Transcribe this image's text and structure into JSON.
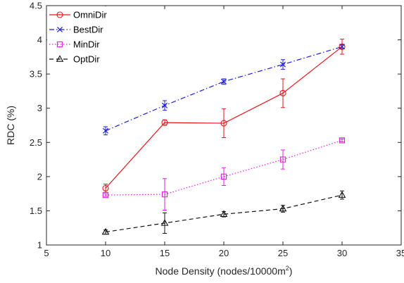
{
  "chart_data": {
    "type": "line",
    "xlabel": "Node Density (nodes/10000m",
    "xlabel_superscript": "2",
    "xlabel_suffix": ")",
    "ylabel": "RDC (%)",
    "xlim": [
      5,
      35
    ],
    "ylim": [
      1,
      4.5
    ],
    "xticks": [
      5,
      10,
      15,
      20,
      25,
      30,
      35
    ],
    "yticks": [
      1,
      1.5,
      2,
      2.5,
      3,
      3.5,
      4,
      4.5
    ],
    "xtick_labels": [
      "5",
      "10",
      "15",
      "20",
      "25",
      "30",
      "35"
    ],
    "ytick_labels": [
      "1",
      "1.5",
      "2",
      "2.5",
      "3",
      "3.5",
      "4",
      "4.5"
    ],
    "grid": false,
    "legend_position": "top-left",
    "x": [
      10,
      15,
      20,
      25,
      30
    ],
    "series": [
      {
        "name": "OmniDir",
        "color": "#e8161b",
        "line_style": "solid",
        "marker": "circle",
        "values": [
          1.83,
          2.79,
          2.78,
          3.22,
          3.9
        ],
        "error": [
          0.06,
          0.04,
          0.21,
          0.21,
          0.11
        ]
      },
      {
        "name": "BestDir",
        "color": "#1f1fd6",
        "line_style": "dashdot",
        "marker": "x",
        "values": [
          2.67,
          3.04,
          3.39,
          3.64,
          3.9
        ],
        "error": [
          0.06,
          0.07,
          0.04,
          0.07,
          0.03
        ]
      },
      {
        "name": "MinDir",
        "color": "#e21fe2",
        "line_style": "dotted",
        "marker": "square",
        "values": [
          1.73,
          1.74,
          2.0,
          2.25,
          2.53
        ],
        "error": [
          0.02,
          0.23,
          0.13,
          0.14,
          0.02
        ]
      },
      {
        "name": "OptDir",
        "color": "#111111",
        "line_style": "dashed",
        "marker": "triangle",
        "values": [
          1.19,
          1.32,
          1.45,
          1.53,
          1.73
        ],
        "error": [
          0.03,
          0.15,
          0.04,
          0.05,
          0.06
        ]
      }
    ]
  }
}
